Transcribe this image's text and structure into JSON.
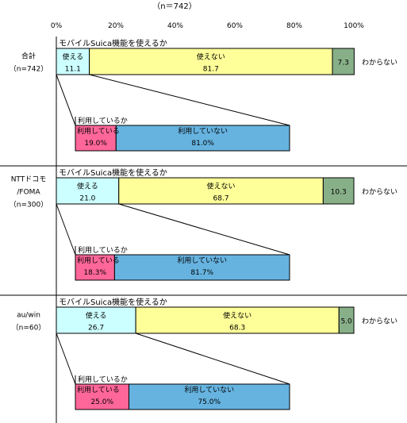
{
  "chart_data": {
    "type": "bar",
    "n_label": "（n＝742）",
    "x_ticks": [
      "0%",
      "20%",
      "40%",
      "60%",
      "80%",
      "100%"
    ],
    "xlim": [
      0,
      100
    ],
    "groups": [
      {
        "name_lines": [
          "合計",
          "（n=742）"
        ],
        "question": "モバイルSuica機能を使えるか",
        "series": [
          {
            "name": "使える",
            "value": 11.1,
            "label": "11.1",
            "color": "#ccffff"
          },
          {
            "name": "使えない",
            "value": 81.7,
            "label": "81.7",
            "color": "#ffff99"
          },
          {
            "name": "わからない",
            "value": 7.3,
            "label": "7.3",
            "color": "#88b088"
          }
        ],
        "dk_label": "わからない",
        "sub_question": "利用しているか",
        "sub_series": [
          {
            "name": "利用している",
            "value": 19.0,
            "label": "19.0%",
            "color": "#ff6699"
          },
          {
            "name": "利用していない",
            "value": 81.0,
            "label": "81.0%",
            "color": "#66b3e0"
          }
        ]
      },
      {
        "name_lines": [
          "NTTドコモ",
          "/FOMA",
          "（n=300）"
        ],
        "question": "モバイルSuica機能を使えるか",
        "series": [
          {
            "name": "使える",
            "value": 21.0,
            "label": "21.0",
            "color": "#ccffff"
          },
          {
            "name": "使えない",
            "value": 68.7,
            "label": "68.7",
            "color": "#ffff99"
          },
          {
            "name": "わからない",
            "value": 10.3,
            "label": "10.3",
            "color": "#88b088"
          }
        ],
        "dk_label": "わからない",
        "sub_question": "利用しているか",
        "sub_series": [
          {
            "name": "利用している",
            "value": 18.3,
            "label": "18.3%",
            "color": "#ff6699"
          },
          {
            "name": "利用していない",
            "value": 81.7,
            "label": "81.7%",
            "color": "#66b3e0"
          }
        ]
      },
      {
        "name_lines": [
          "au/win",
          "（n=60）"
        ],
        "question": "モバイルSuica機能を使えるか",
        "series": [
          {
            "name": "使える",
            "value": 26.7,
            "label": "26.7",
            "color": "#ccffff"
          },
          {
            "name": "使えない",
            "value": 68.3,
            "label": "68.3",
            "color": "#ffff99"
          },
          {
            "name": "わからない",
            "value": 5.0,
            "label": "5.0",
            "color": "#88b088"
          }
        ],
        "dk_label": "わからない",
        "sub_question": "利用しているか",
        "sub_series": [
          {
            "name": "利用している",
            "value": 25.0,
            "label": "25.0%",
            "color": "#ff6699"
          },
          {
            "name": "利用していない",
            "value": 75.0,
            "label": "75.0%",
            "color": "#66b3e0"
          }
        ]
      }
    ]
  }
}
